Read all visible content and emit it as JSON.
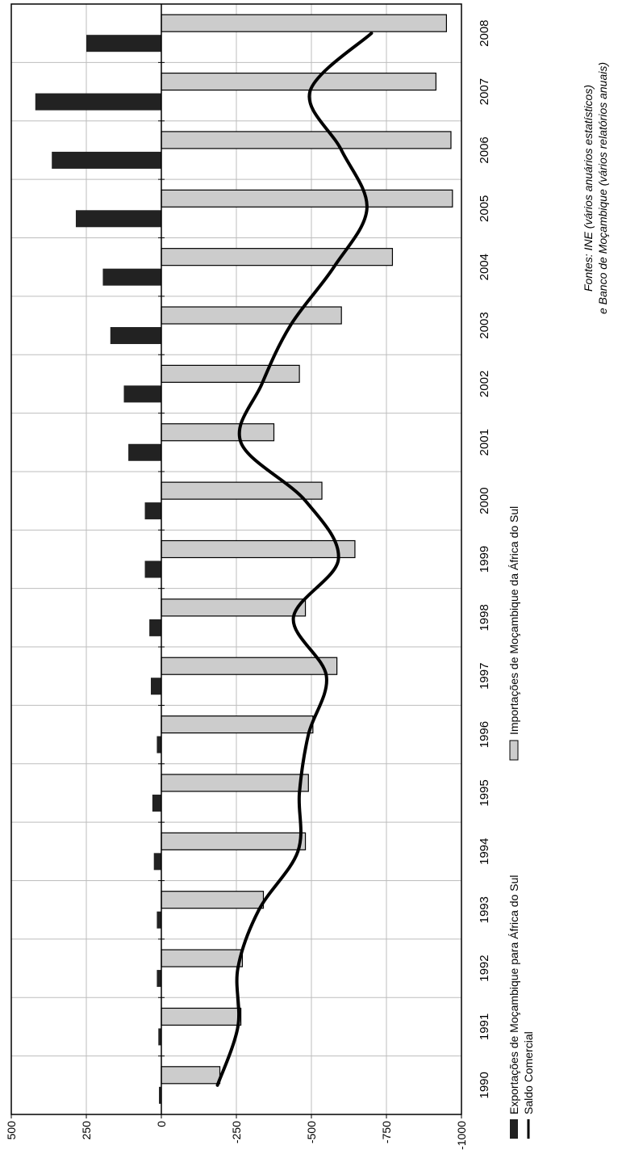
{
  "chart_data": {
    "type": "bar",
    "orientation": "rotated-90-clockwise",
    "categories": [
      "1990",
      "1991",
      "1992",
      "1993",
      "1994",
      "1995",
      "1996",
      "1997",
      "1998",
      "1999",
      "2000",
      "2001",
      "2002",
      "2003",
      "2004",
      "2005",
      "2006",
      "2007",
      "2008"
    ],
    "series": [
      {
        "name": "Exportações de Moçambique para África do Sul",
        "kind": "bar",
        "color": "#222222",
        "values": [
          8,
          10,
          15,
          15,
          25,
          30,
          15,
          35,
          40,
          55,
          55,
          110,
          125,
          170,
          195,
          285,
          365,
          420,
          250
        ]
      },
      {
        "name": "Importações de Moçambique da África do Sul",
        "kind": "bar",
        "color": "#cccccc",
        "values": [
          -195,
          -265,
          -270,
          -340,
          -480,
          -490,
          -505,
          -585,
          -480,
          -645,
          -535,
          -375,
          -460,
          -600,
          -770,
          -970,
          -965,
          -915,
          -950
        ]
      },
      {
        "name": "Saldo Comercial",
        "kind": "line",
        "color": "#000000",
        "values": [
          -187,
          -255,
          -255,
          -325,
          -455,
          -460,
          -490,
          -550,
          -440,
          -590,
          -480,
          -265,
          -335,
          -430,
          -575,
          -685,
          -600,
          -495,
          -700
        ]
      }
    ],
    "value_axis": {
      "min": -1000,
      "max": 500,
      "step": 250,
      "tick_labels": [
        "-1000",
        "-750",
        "-500",
        "-250",
        "0",
        "250",
        "500"
      ]
    },
    "grid": true,
    "legend_position": "bottom",
    "source_lines": [
      "Fontes: INE (vários anuários estatísticos)",
      "e Banco de Moçambique (vários relatórios anuais)"
    ]
  }
}
